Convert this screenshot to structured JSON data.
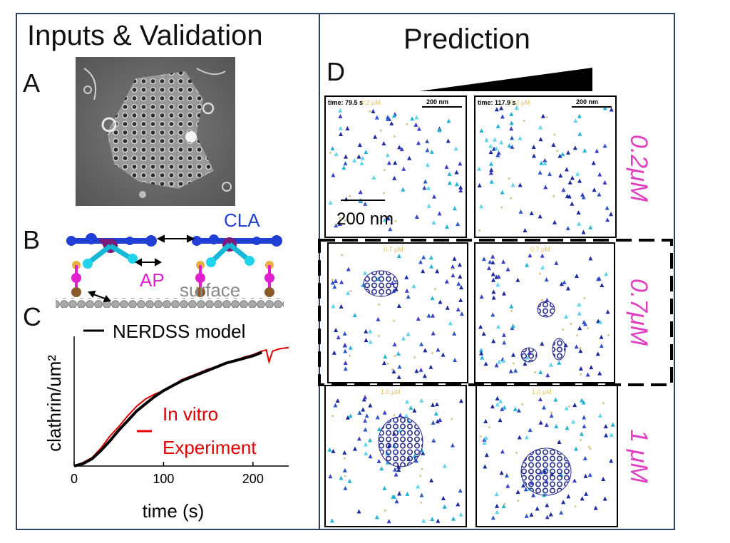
{
  "left_title": "Inputs & Validation",
  "right_title": "Prediction",
  "panels": {
    "a": "A",
    "b": "B",
    "c": "C",
    "d": "D"
  },
  "panel_b": {
    "cla_label": "CLA",
    "ap_label": "AP",
    "surface_label": "surface"
  },
  "panel_d": {
    "scale_bar_label": "200 nm",
    "inset_scale": "200 nm",
    "times": [
      "time: 79.5 s",
      "time: 117.9 s"
    ],
    "concentrations": [
      "0.2μM",
      "0.7μM",
      "1 μM"
    ],
    "tiny_conc": [
      "0.2 μM",
      "0.2 μM",
      "0.7 μM",
      "0.7 μM",
      "1.0 μM",
      "1.0 μM"
    ]
  },
  "colors": {
    "cla": "#1f3fd6",
    "ap": "#e020d0",
    "experiment": "#e00000",
    "model": "#000000",
    "conc_label": "#e040c0"
  },
  "chart_data": {
    "type": "line",
    "xlabel": "time (s)",
    "ylabel": "clathrin/um²",
    "xticks": [
      0,
      100,
      200
    ],
    "xlim": [
      0,
      240
    ],
    "ylim": [
      0,
      1
    ],
    "legend": "top",
    "series": [
      {
        "name": "NERDSS model",
        "x": [
          0,
          10,
          20,
          30,
          40,
          50,
          60,
          70,
          80,
          90,
          100,
          110,
          120,
          130,
          140,
          150,
          160,
          170,
          180,
          190,
          200,
          210
        ],
        "y": [
          0.0,
          0.02,
          0.06,
          0.13,
          0.21,
          0.3,
          0.38,
          0.46,
          0.52,
          0.58,
          0.63,
          0.67,
          0.71,
          0.74,
          0.77,
          0.8,
          0.83,
          0.86,
          0.88,
          0.9,
          0.92,
          0.95
        ]
      },
      {
        "name": "In vitro Experiment",
        "x": [
          0,
          10,
          20,
          30,
          40,
          50,
          60,
          70,
          80,
          90,
          100,
          110,
          120,
          130,
          140,
          150,
          160,
          170,
          180,
          190,
          200,
          210,
          215,
          218,
          222,
          230,
          240
        ],
        "y": [
          0.0,
          0.03,
          0.07,
          0.15,
          0.25,
          0.33,
          0.42,
          0.5,
          0.56,
          0.6,
          0.63,
          0.67,
          0.72,
          0.75,
          0.78,
          0.81,
          0.83,
          0.86,
          0.88,
          0.91,
          0.93,
          0.96,
          0.97,
          0.87,
          0.96,
          0.98,
          0.99
        ]
      }
    ]
  }
}
